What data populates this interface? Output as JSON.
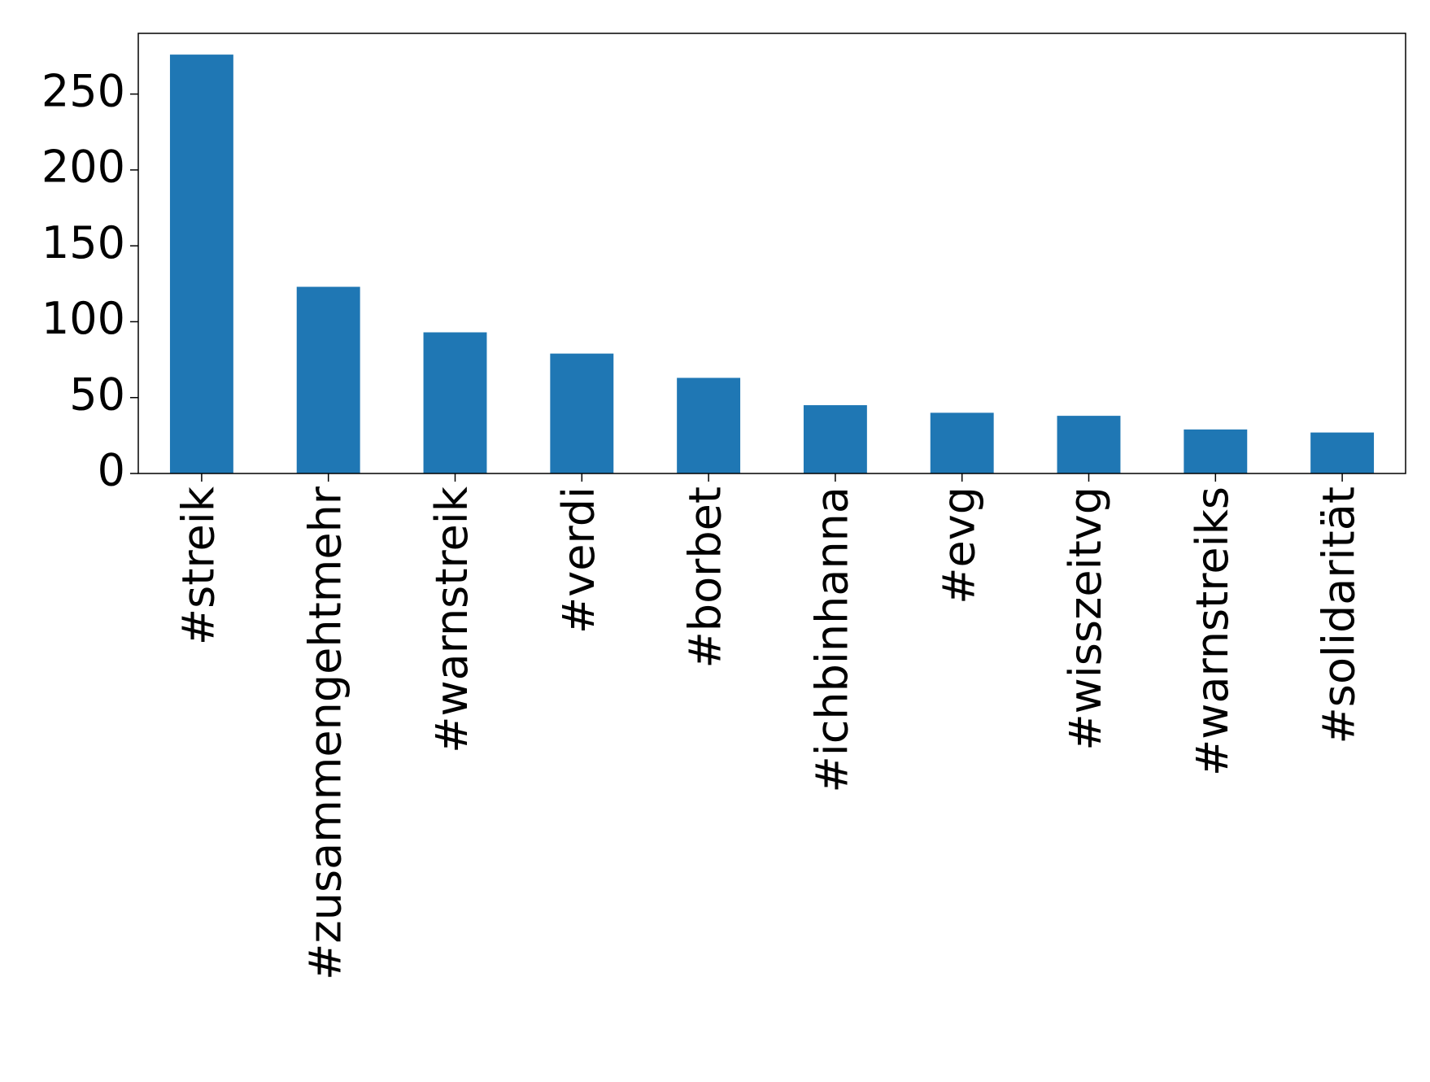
{
  "chart_data": {
    "type": "bar",
    "categories": [
      "#streik",
      "#zusammengehtmehr",
      "#warnstreik",
      "#verdi",
      "#borbet",
      "#ichbinhanna",
      "#evg",
      "#wisszeitvg",
      "#warnstreiks",
      "#solidarität"
    ],
    "values": [
      276,
      123,
      93,
      79,
      63,
      45,
      40,
      38,
      29,
      27
    ],
    "color": "#1f77b4",
    "ylim": [
      0,
      290
    ],
    "yticks": [
      0,
      50,
      100,
      150,
      200,
      250
    ],
    "grid": false
  }
}
